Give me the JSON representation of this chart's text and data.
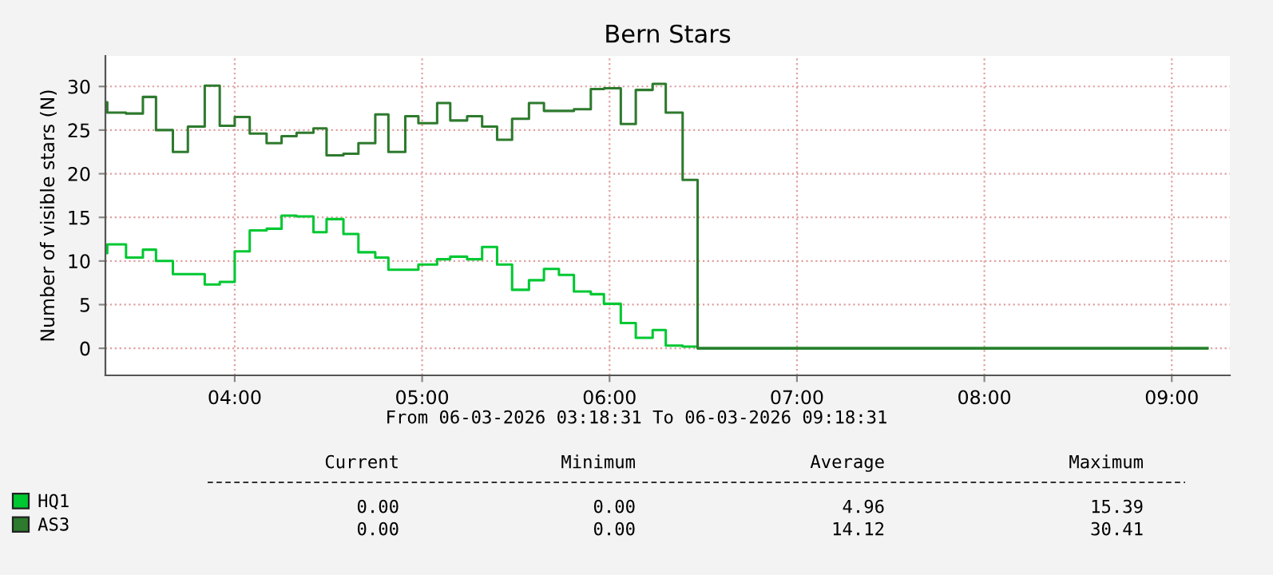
{
  "chart_data": {
    "type": "step",
    "title": "Bern Stars",
    "ylabel": "Number of visible stars (N)",
    "x": [
      3.31,
      3.32,
      3.42,
      3.51,
      3.58,
      3.67,
      3.75,
      3.84,
      3.92,
      4.0,
      4.08,
      4.17,
      4.25,
      4.33,
      4.42,
      4.49,
      4.58,
      4.66,
      4.75,
      4.82,
      4.91,
      4.98,
      5.08,
      5.15,
      5.24,
      5.32,
      5.4,
      5.48,
      5.57,
      5.65,
      5.73,
      5.81,
      5.9,
      5.97,
      6.06,
      6.14,
      6.23,
      6.3,
      6.39,
      6.47,
      9.19
    ],
    "series": [
      {
        "name": "HQ1",
        "color": "#00c832",
        "values": [
          10.9,
          11.9,
          10.4,
          11.3,
          10.0,
          8.5,
          8.5,
          7.3,
          7.6,
          11.1,
          13.5,
          13.7,
          15.2,
          15.1,
          13.3,
          14.8,
          13.1,
          11.0,
          10.4,
          9.0,
          9.0,
          9.6,
          10.2,
          10.5,
          10.2,
          11.6,
          9.6,
          6.7,
          7.8,
          9.1,
          8.4,
          6.5,
          6.2,
          5.1,
          2.9,
          1.2,
          2.1,
          0.3,
          0.2,
          0,
          0
        ]
      },
      {
        "name": "AS3",
        "color": "#2e7a2e",
        "values": [
          28.2,
          27.0,
          26.9,
          28.8,
          25.0,
          22.5,
          25.4,
          30.1,
          25.5,
          26.5,
          24.6,
          23.5,
          24.3,
          24.7,
          25.2,
          22.1,
          22.3,
          23.5,
          26.8,
          22.5,
          26.6,
          25.8,
          28.1,
          26.1,
          26.6,
          25.4,
          23.9,
          26.3,
          28.1,
          27.2,
          27.2,
          27.4,
          29.7,
          29.8,
          25.7,
          29.6,
          30.3,
          27.0,
          19.3,
          0,
          0
        ]
      }
    ],
    "xlim": [
      3.31,
      9.31
    ],
    "ylim": [
      -3.1,
      33.5
    ],
    "xticks": [
      {
        "value": 4,
        "label": "04:00"
      },
      {
        "value": 5,
        "label": "05:00"
      },
      {
        "value": 6,
        "label": "06:00"
      },
      {
        "value": 7,
        "label": "07:00"
      },
      {
        "value": 8,
        "label": "08:00"
      },
      {
        "value": 9,
        "label": "09:00"
      }
    ],
    "yticks": [
      0,
      5,
      10,
      15,
      20,
      25,
      30
    ],
    "grid": true,
    "legend": "bottom left",
    "line_style": "solid",
    "marker": "none",
    "annotations": [
      "From 06-03-2026 03:18:31 To 06-03-2026 09:18:31",
      "Current",
      "Minimum",
      "Average",
      "Maximum",
      "0.00",
      "0.00",
      "4.96",
      "15.39",
      "0.00",
      "0.00",
      "14.12",
      "30.41"
    ]
  }
}
